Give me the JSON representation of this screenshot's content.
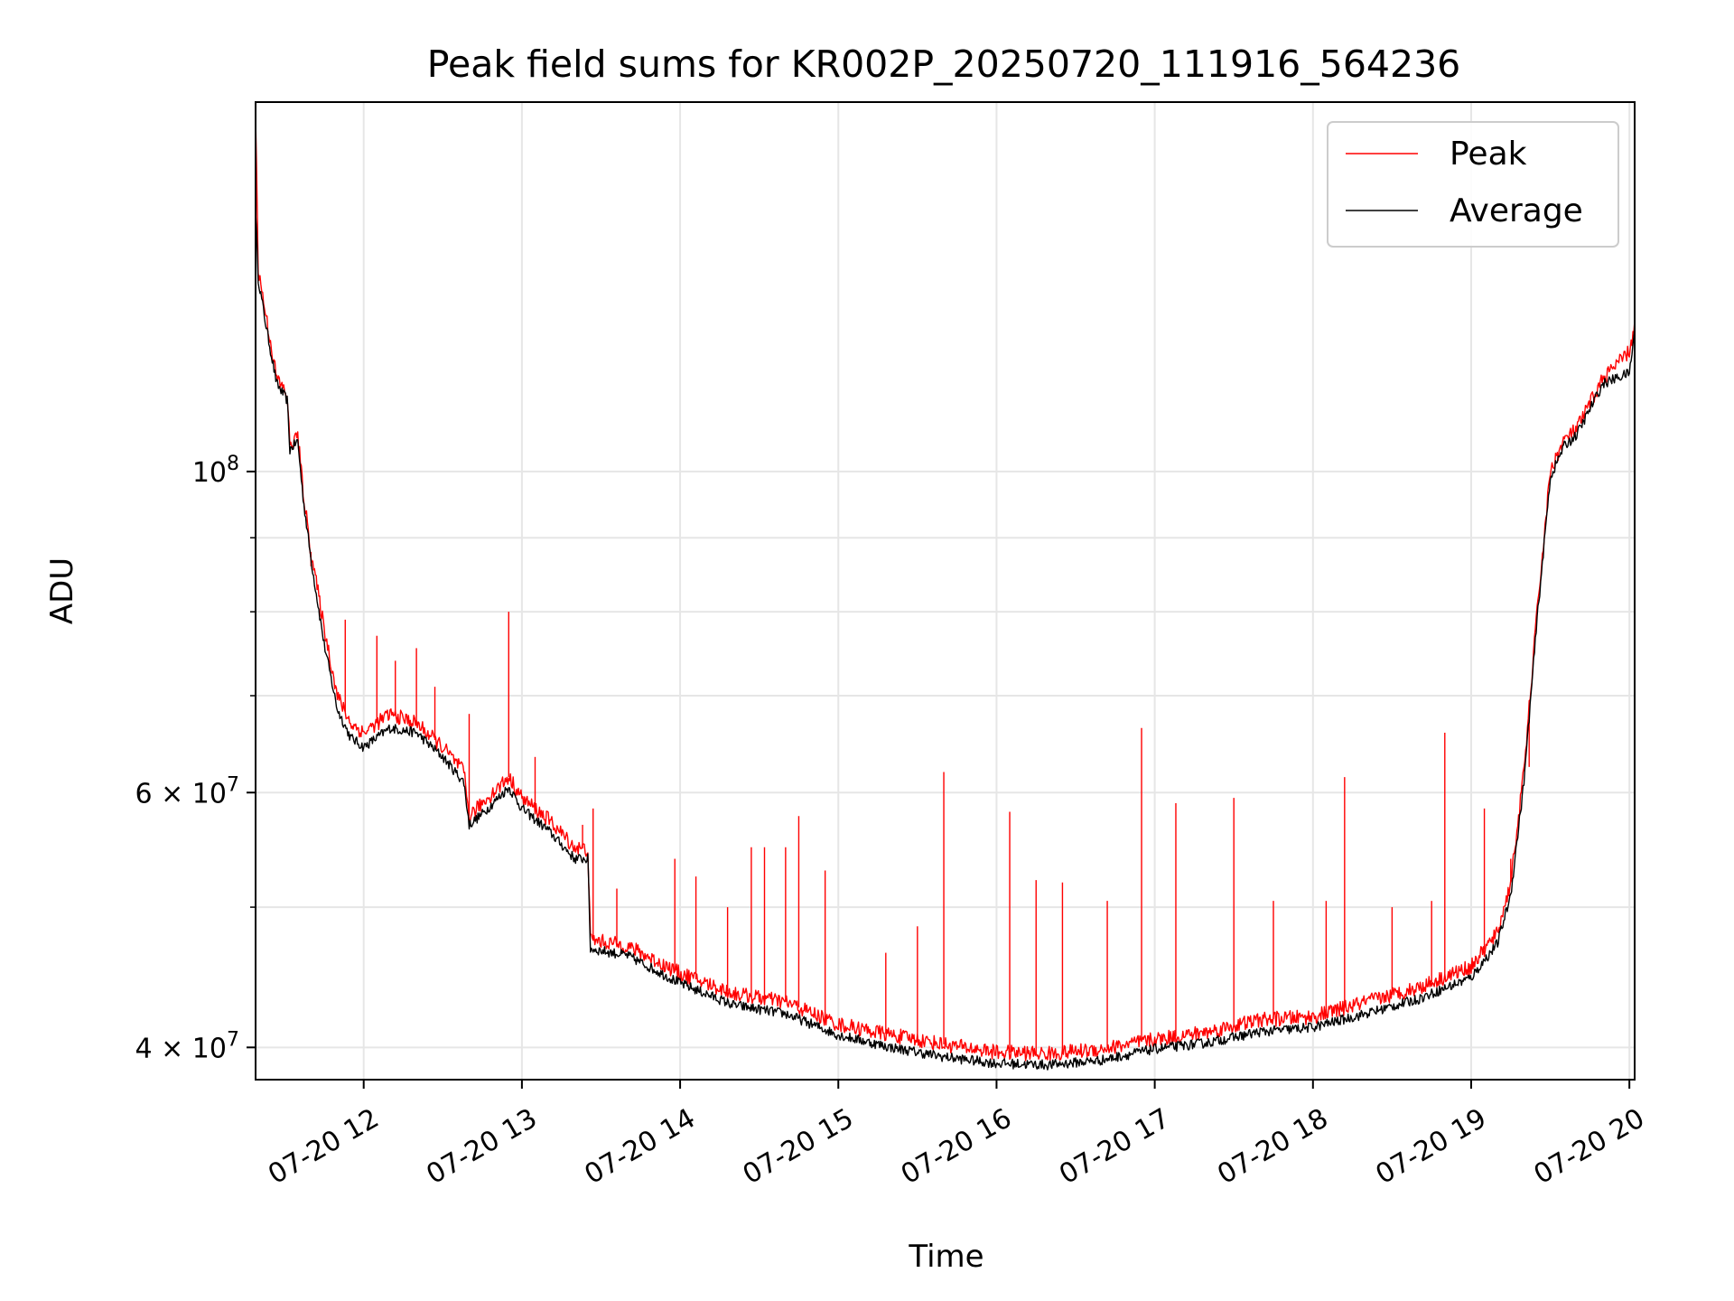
{
  "chart_data": {
    "type": "line",
    "title": "Peak field sums for KR002P_20250720_111916_564236",
    "xlabel": "Time",
    "ylabel": "ADU",
    "y_scale": "log",
    "ylim": [
      38000000,
      180000000
    ],
    "xlim": [
      "2025-07-20 11:19",
      "2025-07-20 20:02"
    ],
    "grid": true,
    "legend": {
      "placement": "top-right",
      "entries": [
        "Peak",
        "Average"
      ]
    },
    "x_ticks": [
      {
        "label": "07-20 12",
        "value": "2025-07-20 12:00"
      },
      {
        "label": "07-20 13",
        "value": "2025-07-20 13:00"
      },
      {
        "label": "07-20 14",
        "value": "2025-07-20 14:00"
      },
      {
        "label": "07-20 15",
        "value": "2025-07-20 15:00"
      },
      {
        "label": "07-20 16",
        "value": "2025-07-20 16:00"
      },
      {
        "label": "07-20 17",
        "value": "2025-07-20 17:00"
      },
      {
        "label": "07-20 18",
        "value": "2025-07-20 18:00"
      },
      {
        "label": "07-20 19",
        "value": "2025-07-20 19:00"
      },
      {
        "label": "07-20 20",
        "value": "2025-07-20 20:00"
      }
    ],
    "y_ticks": [
      {
        "label_base": "10",
        "label_exp": "8",
        "value": 100000000
      },
      {
        "label_base": "6 × 10",
        "label_exp": "7",
        "value": 60000000
      },
      {
        "label_base": "4 × 10",
        "label_exp": "7",
        "value": 40000000
      }
    ],
    "y_minor_ticks": [
      50000000,
      70000000,
      80000000,
      90000000
    ],
    "series": [
      {
        "name": "Peak",
        "color": "#ff0000",
        "points": [
          [
            "2025-07-20 11:19",
            178000000
          ],
          [
            "2025-07-20 11:20",
            138000000
          ],
          [
            "2025-07-20 11:23",
            128000000
          ],
          [
            "2025-07-20 11:27",
            116000000
          ],
          [
            "2025-07-20 11:31",
            113000000
          ],
          [
            "2025-07-20 11:32",
            104000000
          ],
          [
            "2025-07-20 11:35",
            106000000
          ],
          [
            "2025-07-20 11:37",
            97000000
          ],
          [
            "2025-07-20 11:40",
            88000000
          ],
          [
            "2025-07-20 11:45",
            78000000
          ],
          [
            "2025-07-20 11:50",
            70000000
          ],
          [
            "2025-07-20 11:55",
            67000000
          ],
          [
            "2025-07-20 12:00",
            66000000
          ],
          [
            "2025-07-20 12:10",
            68000000
          ],
          [
            "2025-07-20 12:20",
            67000000
          ],
          [
            "2025-07-20 12:30",
            64500000
          ],
          [
            "2025-07-20 12:38",
            62000000
          ],
          [
            "2025-07-20 12:40",
            57800000
          ],
          [
            "2025-07-20 12:45",
            59000000
          ],
          [
            "2025-07-20 12:55",
            61500000
          ],
          [
            "2025-07-20 13:00",
            59500000
          ],
          [
            "2025-07-20 13:10",
            57500000
          ],
          [
            "2025-07-20 13:20",
            55000000
          ],
          [
            "2025-07-20 13:25",
            54800000
          ],
          [
            "2025-07-20 13:26",
            47500000
          ],
          [
            "2025-07-20 13:40",
            47000000
          ],
          [
            "2025-07-20 14:00",
            45000000
          ],
          [
            "2025-07-20 14:20",
            43600000
          ],
          [
            "2025-07-20 14:40",
            43000000
          ],
          [
            "2025-07-20 15:00",
            41500000
          ],
          [
            "2025-07-20 15:20",
            40800000
          ],
          [
            "2025-07-20 15:40",
            40200000
          ],
          [
            "2025-07-20 16:00",
            39700000
          ],
          [
            "2025-07-20 16:20",
            39600000
          ],
          [
            "2025-07-20 16:40",
            39900000
          ],
          [
            "2025-07-20 17:00",
            40500000
          ],
          [
            "2025-07-20 17:20",
            41000000
          ],
          [
            "2025-07-20 17:40",
            41800000
          ],
          [
            "2025-07-20 18:00",
            42000000
          ],
          [
            "2025-07-20 18:20",
            43000000
          ],
          [
            "2025-07-20 18:40",
            44000000
          ],
          [
            "2025-07-20 19:00",
            45500000
          ],
          [
            "2025-07-20 19:10",
            48000000
          ],
          [
            "2025-07-20 19:15",
            52000000
          ],
          [
            "2025-07-20 19:20",
            62000000
          ],
          [
            "2025-07-20 19:25",
            80000000
          ],
          [
            "2025-07-20 19:30",
            100000000
          ],
          [
            "2025-07-20 19:35",
            105000000
          ],
          [
            "2025-07-20 19:40",
            107000000
          ],
          [
            "2025-07-20 19:50",
            116000000
          ],
          [
            "2025-07-20 20:00",
            121000000
          ],
          [
            "2025-07-20 20:02",
            126000000
          ]
        ],
        "spikes": [
          [
            "2025-07-20 11:40",
            86000000
          ],
          [
            "2025-07-20 11:53",
            79000000
          ],
          [
            "2025-07-20 12:05",
            77000000
          ],
          [
            "2025-07-20 12:12",
            74000000
          ],
          [
            "2025-07-20 12:20",
            75500000
          ],
          [
            "2025-07-20 12:27",
            71000000
          ],
          [
            "2025-07-20 12:40",
            68000000
          ],
          [
            "2025-07-20 12:55",
            80000000
          ],
          [
            "2025-07-20 13:05",
            63500000
          ],
          [
            "2025-07-20 13:23",
            57000000
          ],
          [
            "2025-07-20 13:27",
            58500000
          ],
          [
            "2025-07-20 13:36",
            51500000
          ],
          [
            "2025-07-20 13:58",
            54000000
          ],
          [
            "2025-07-20 14:06",
            52500000
          ],
          [
            "2025-07-20 14:18",
            50000000
          ],
          [
            "2025-07-20 14:27",
            55000000
          ],
          [
            "2025-07-20 14:32",
            55000000
          ],
          [
            "2025-07-20 14:40",
            55000000
          ],
          [
            "2025-07-20 14:45",
            57800000
          ],
          [
            "2025-07-20 14:55",
            53000000
          ],
          [
            "2025-07-20 15:18",
            46500000
          ],
          [
            "2025-07-20 15:30",
            48500000
          ],
          [
            "2025-07-20 15:40",
            62000000
          ],
          [
            "2025-07-20 16:05",
            58200000
          ],
          [
            "2025-07-20 16:15",
            52200000
          ],
          [
            "2025-07-20 16:25",
            52000000
          ],
          [
            "2025-07-20 16:42",
            50500000
          ],
          [
            "2025-07-20 16:55",
            66500000
          ],
          [
            "2025-07-20 17:08",
            59000000
          ],
          [
            "2025-07-20 17:30",
            59500000
          ],
          [
            "2025-07-20 17:45",
            50500000
          ],
          [
            "2025-07-20 18:05",
            50500000
          ],
          [
            "2025-07-20 18:12",
            61500000
          ],
          [
            "2025-07-20 18:30",
            50000000
          ],
          [
            "2025-07-20 18:45",
            50500000
          ],
          [
            "2025-07-20 18:50",
            66000000
          ],
          [
            "2025-07-20 19:05",
            58500000
          ],
          [
            "2025-07-20 19:15",
            54000000
          ],
          [
            "2025-07-20 19:22",
            62500000
          ]
        ]
      },
      {
        "name": "Average",
        "color": "#000000",
        "points": [
          [
            "2025-07-20 11:19",
            152000000
          ],
          [
            "2025-07-20 11:20",
            136000000
          ],
          [
            "2025-07-20 11:23",
            126000000
          ],
          [
            "2025-07-20 11:27",
            115000000
          ],
          [
            "2025-07-20 11:31",
            112000000
          ],
          [
            "2025-07-20 11:32",
            103500000
          ],
          [
            "2025-07-20 11:35",
            105000000
          ],
          [
            "2025-07-20 11:37",
            96000000
          ],
          [
            "2025-07-20 11:40",
            87000000
          ],
          [
            "2025-07-20 11:45",
            76000000
          ],
          [
            "2025-07-20 11:50",
            68500000
          ],
          [
            "2025-07-20 11:55",
            65500000
          ],
          [
            "2025-07-20 12:00",
            64500000
          ],
          [
            "2025-07-20 12:10",
            66500000
          ],
          [
            "2025-07-20 12:20",
            66000000
          ],
          [
            "2025-07-20 12:30",
            63500000
          ],
          [
            "2025-07-20 12:38",
            61000000
          ],
          [
            "2025-07-20 12:40",
            57000000
          ],
          [
            "2025-07-20 12:45",
            58000000
          ],
          [
            "2025-07-20 12:55",
            60500000
          ],
          [
            "2025-07-20 13:00",
            58500000
          ],
          [
            "2025-07-20 13:10",
            56500000
          ],
          [
            "2025-07-20 13:20",
            54000000
          ],
          [
            "2025-07-20 13:25",
            54000000
          ],
          [
            "2025-07-20 13:26",
            46800000
          ],
          [
            "2025-07-20 13:40",
            46300000
          ],
          [
            "2025-07-20 14:00",
            44300000
          ],
          [
            "2025-07-20 14:20",
            42800000
          ],
          [
            "2025-07-20 14:40",
            42200000
          ],
          [
            "2025-07-20 15:00",
            40800000
          ],
          [
            "2025-07-20 15:20",
            40000000
          ],
          [
            "2025-07-20 15:40",
            39400000
          ],
          [
            "2025-07-20 16:00",
            39000000
          ],
          [
            "2025-07-20 16:20",
            38900000
          ],
          [
            "2025-07-20 16:40",
            39200000
          ],
          [
            "2025-07-20 17:00",
            39900000
          ],
          [
            "2025-07-20 17:20",
            40300000
          ],
          [
            "2025-07-20 17:40",
            41000000
          ],
          [
            "2025-07-20 18:00",
            41300000
          ],
          [
            "2025-07-20 18:20",
            42200000
          ],
          [
            "2025-07-20 18:40",
            43200000
          ],
          [
            "2025-07-20 19:00",
            44700000
          ],
          [
            "2025-07-20 19:10",
            47200000
          ],
          [
            "2025-07-20 19:15",
            51000000
          ],
          [
            "2025-07-20 19:20",
            61000000
          ],
          [
            "2025-07-20 19:25",
            79000000
          ],
          [
            "2025-07-20 19:30",
            99000000
          ],
          [
            "2025-07-20 19:35",
            104000000
          ],
          [
            "2025-07-20 19:40",
            106000000
          ],
          [
            "2025-07-20 19:50",
            115000000
          ],
          [
            "2025-07-20 20:00",
            117000000
          ],
          [
            "2025-07-20 20:02",
            125000000
          ]
        ],
        "spikes": []
      }
    ]
  }
}
